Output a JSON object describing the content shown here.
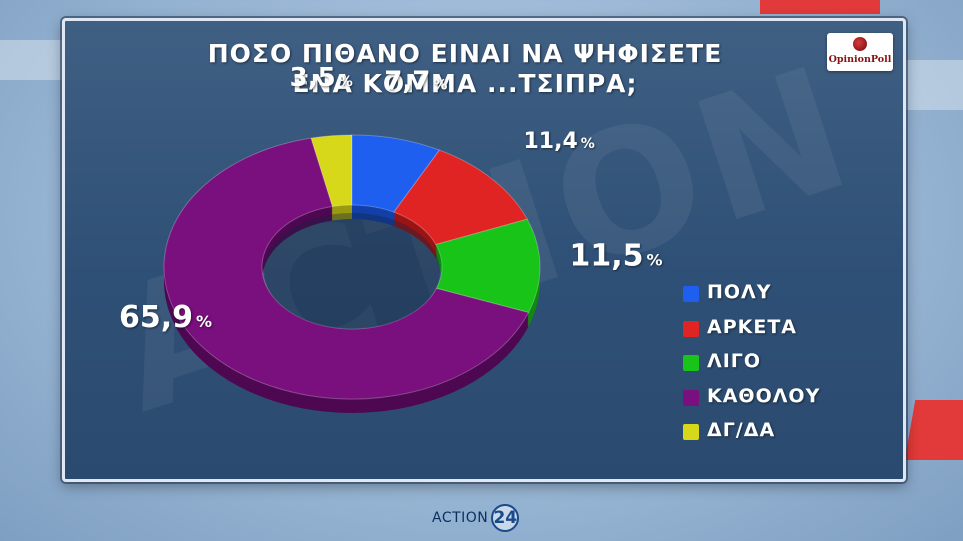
{
  "title_line1": "ΠΟΣΟ ΠΙΘΑΝΟ ΕΙΝΑΙ ΝΑ ΨΗΦΙΣΕΤΕ",
  "title_line2": "ΕΝΑ ΚΟΜΜΑ ...ΤΣΙΠΡΑ;",
  "logo_text": "OpinionPoll",
  "watermark_text": "ACTION",
  "footer": {
    "brand": "ACTION",
    "number": "24"
  },
  "chart_data": {
    "type": "pie",
    "style": "donut-3d",
    "categories": [
      "ΠΟΛΥ",
      "ΑΡΚΕΤΑ",
      "ΛΙΓΟ",
      "ΚΑΘΟΛΟΥ",
      "ΔΓ/ΔΑ"
    ],
    "values": [
      7.7,
      11.4,
      11.5,
      65.9,
      3.5
    ],
    "labels": [
      "7,7",
      "11,4",
      "11,5",
      "65,9",
      "3,5"
    ],
    "unit": "%",
    "colors": [
      "#1e5ff0",
      "#e02424",
      "#19c419",
      "#7a0f7e",
      "#d8d81a"
    ],
    "side_colors": [
      "#123fa8",
      "#9a1414",
      "#0f8a0f",
      "#4e0852",
      "#9a9a10"
    ],
    "legend_placement": "right"
  }
}
